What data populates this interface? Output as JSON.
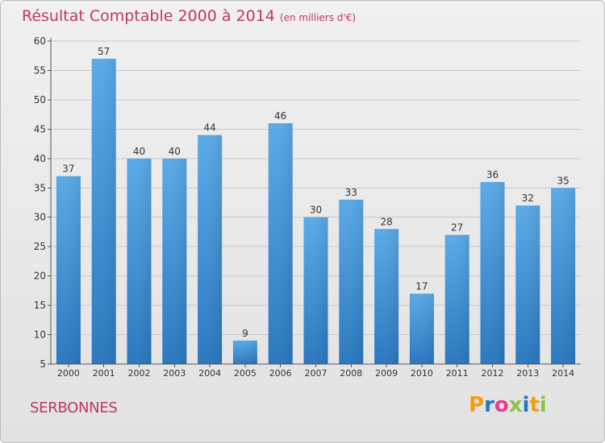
{
  "title": "Résultat Comptable 2000 à 2014",
  "subtitle": "(en milliers d'€)",
  "commune": "SERBONNES",
  "logo": {
    "letters": [
      "P",
      "r",
      "o",
      "x",
      "i",
      "t",
      "i"
    ],
    "colors": [
      "#f39c12",
      "#1f78c8",
      "#e63e8a",
      "#8bc34a",
      "#1f78c8",
      "#f39c12",
      "#8bc34a"
    ]
  },
  "chart_data": {
    "type": "bar",
    "categories": [
      "2000",
      "2001",
      "2002",
      "2003",
      "2004",
      "2005",
      "2006",
      "2007",
      "2008",
      "2009",
      "2010",
      "2011",
      "2012",
      "2013",
      "2014"
    ],
    "values": [
      37,
      57,
      40,
      40,
      44,
      9,
      46,
      30,
      33,
      28,
      17,
      27,
      36,
      32,
      35
    ],
    "ylim": [
      5,
      60
    ],
    "yticks": [
      5,
      10,
      15,
      20,
      25,
      30,
      35,
      40,
      45,
      50,
      55,
      60
    ],
    "grid": true,
    "bar_color": "#3d8fd6"
  }
}
